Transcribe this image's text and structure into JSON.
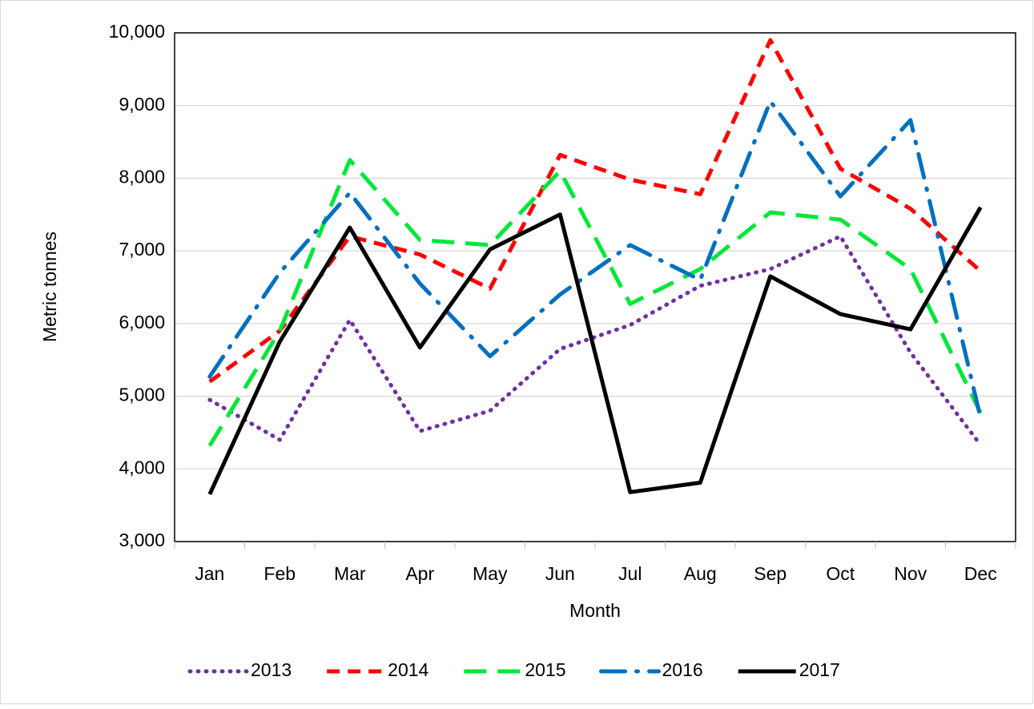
{
  "chart_data": {
    "type": "line",
    "x_label": "Month",
    "y_label": "Metric tonnes",
    "categories": [
      "Jan",
      "Feb",
      "Mar",
      "Apr",
      "May",
      "Jun",
      "Jul",
      "Aug",
      "Sep",
      "Oct",
      "Nov",
      "Dec"
    ],
    "series": [
      {
        "name": "2013",
        "color": "#7030a0",
        "dash": "dotted",
        "values": [
          4950,
          4400,
          6050,
          4520,
          4800,
          5650,
          5980,
          6520,
          6750,
          7200,
          5600,
          4330
        ]
      },
      {
        "name": "2014",
        "color": "#ff0000",
        "dash": "dashed",
        "values": [
          5200,
          5900,
          7200,
          6950,
          6480,
          8320,
          7980,
          7780,
          9900,
          8130,
          7580,
          6720
        ]
      },
      {
        "name": "2015",
        "color": "#00e838",
        "dash": "long-dash",
        "values": [
          4320,
          5900,
          8250,
          7150,
          7080,
          8100,
          6270,
          6750,
          7530,
          7430,
          6750,
          4770
        ]
      },
      {
        "name": "2016",
        "color": "#0070c0",
        "dash": "dash-dot",
        "values": [
          5270,
          6700,
          7800,
          6550,
          5550,
          6400,
          7080,
          6600,
          9060,
          7750,
          8800,
          4700
        ]
      },
      {
        "name": "2017",
        "color": "#000000",
        "dash": "solid",
        "values": [
          3650,
          5750,
          7320,
          5670,
          7020,
          7500,
          3680,
          3810,
          6650,
          6130,
          5920,
          7600
        ]
      }
    ],
    "ylim": [
      3000,
      10000
    ],
    "yticks": [
      {
        "value": 3000,
        "label": "3,000"
      },
      {
        "value": 4000,
        "label": "4,000"
      },
      {
        "value": 5000,
        "label": "5,000"
      },
      {
        "value": 6000,
        "label": "6,000"
      },
      {
        "value": 7000,
        "label": "7,000"
      },
      {
        "value": 8000,
        "label": "8,000"
      },
      {
        "value": 9000,
        "label": "9,000"
      },
      {
        "value": 10000,
        "label": "10,000"
      }
    ],
    "grid": true,
    "legend": "bottom"
  }
}
